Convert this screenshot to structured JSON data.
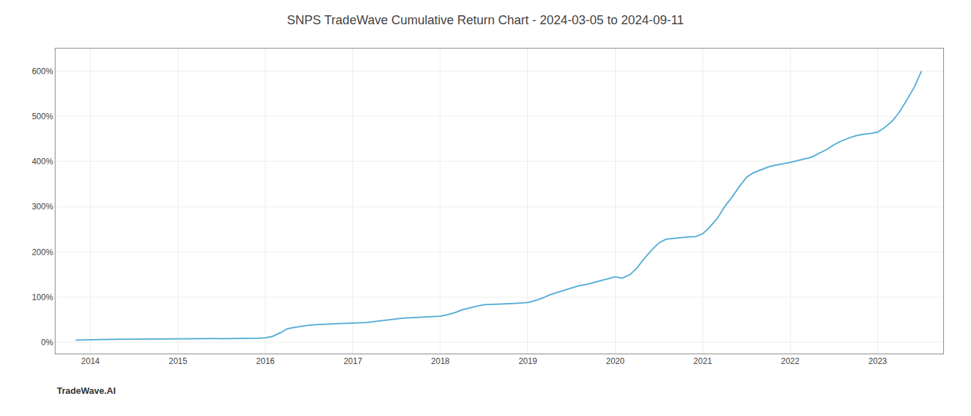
{
  "chart_data": {
    "type": "line",
    "title": "SNPS TradeWave Cumulative Return Chart - 2024-03-05 to 2024-09-11",
    "annotations": [
      {
        "text": "TradeWave.AI"
      }
    ],
    "color": "#5aafd6",
    "grid": true,
    "xlim": [
      2013.6,
      2023.75
    ],
    "ylim": [
      -0.25,
      6.5
    ],
    "xticks": [
      2014,
      2015,
      2016,
      2017,
      2018,
      2019,
      2020,
      2021,
      2022,
      2023
    ],
    "yticks": [
      {
        "value": 0,
        "label": "0%"
      },
      {
        "value": 1,
        "label": "100%"
      },
      {
        "value": 2,
        "label": "200%"
      },
      {
        "value": 3,
        "label": "300%"
      },
      {
        "value": 4,
        "label": "400%"
      },
      {
        "value": 5,
        "label": "500%"
      },
      {
        "value": 6,
        "label": "600%"
      }
    ],
    "x": [
      2013.83,
      2013.92,
      2014.0,
      2014.08,
      2014.17,
      2014.25,
      2014.33,
      2014.42,
      2014.5,
      2014.58,
      2014.67,
      2014.75,
      2014.83,
      2014.92,
      2015.0,
      2015.08,
      2015.17,
      2015.25,
      2015.33,
      2015.42,
      2015.5,
      2015.58,
      2015.67,
      2015.75,
      2015.83,
      2015.92,
      2016.0,
      2016.08,
      2016.17,
      2016.25,
      2016.33,
      2016.42,
      2016.5,
      2016.58,
      2016.67,
      2016.75,
      2016.83,
      2016.92,
      2017.0,
      2017.08,
      2017.17,
      2017.25,
      2017.33,
      2017.42,
      2017.5,
      2017.58,
      2017.67,
      2017.75,
      2017.83,
      2017.92,
      2018.0,
      2018.08,
      2018.17,
      2018.25,
      2018.33,
      2018.42,
      2018.5,
      2018.58,
      2018.67,
      2018.75,
      2018.83,
      2018.92,
      2019.0,
      2019.08,
      2019.17,
      2019.25,
      2019.33,
      2019.42,
      2019.5,
      2019.58,
      2019.67,
      2019.75,
      2019.83,
      2019.92,
      2020.0,
      2020.08,
      2020.17,
      2020.25,
      2020.33,
      2020.42,
      2020.5,
      2020.58,
      2020.67,
      2020.75,
      2020.83,
      2020.92,
      2021.0,
      2021.08,
      2021.17,
      2021.25,
      2021.33,
      2021.42,
      2021.5,
      2021.58,
      2021.67,
      2021.75,
      2021.83,
      2021.92,
      2022.0,
      2022.08,
      2022.17,
      2022.25,
      2022.33,
      2022.42,
      2022.5,
      2022.58,
      2022.67,
      2022.75,
      2022.83,
      2022.92,
      2023.0,
      2023.08,
      2023.17,
      2023.25,
      2023.33,
      2023.42,
      2023.5
    ],
    "values": [
      0.05,
      0.055,
      0.06,
      0.065,
      0.065,
      0.07,
      0.068,
      0.068,
      0.07,
      0.072,
      0.072,
      0.073,
      0.074,
      0.075,
      0.077,
      0.078,
      0.08,
      0.082,
      0.083,
      0.082,
      0.081,
      0.082,
      0.084,
      0.086,
      0.088,
      0.09,
      0.1,
      0.13,
      0.21,
      0.3,
      0.33,
      0.36,
      0.38,
      0.39,
      0.4,
      0.41,
      0.415,
      0.42,
      0.425,
      0.43,
      0.44,
      0.46,
      0.48,
      0.5,
      0.52,
      0.535,
      0.545,
      0.555,
      0.56,
      0.57,
      0.58,
      0.61,
      0.66,
      0.72,
      0.76,
      0.8,
      0.83,
      0.84,
      0.845,
      0.85,
      0.86,
      0.87,
      0.88,
      0.92,
      0.98,
      1.05,
      1.1,
      1.15,
      1.2,
      1.25,
      1.28,
      1.32,
      1.36,
      1.4,
      1.45,
      1.42,
      1.5,
      1.65,
      1.85,
      2.05,
      2.2,
      2.28,
      2.3,
      2.32,
      2.33,
      2.34,
      2.4,
      2.55,
      2.75,
      3.0,
      3.2,
      3.45,
      3.65,
      3.75,
      3.82,
      3.88,
      3.92,
      3.95,
      3.98,
      4.02,
      4.06,
      4.1,
      4.18,
      4.27,
      4.37,
      4.45,
      4.52,
      4.57,
      4.6,
      4.62,
      4.65,
      4.75,
      4.9,
      5.1,
      5.35,
      5.65,
      6.0
    ]
  }
}
